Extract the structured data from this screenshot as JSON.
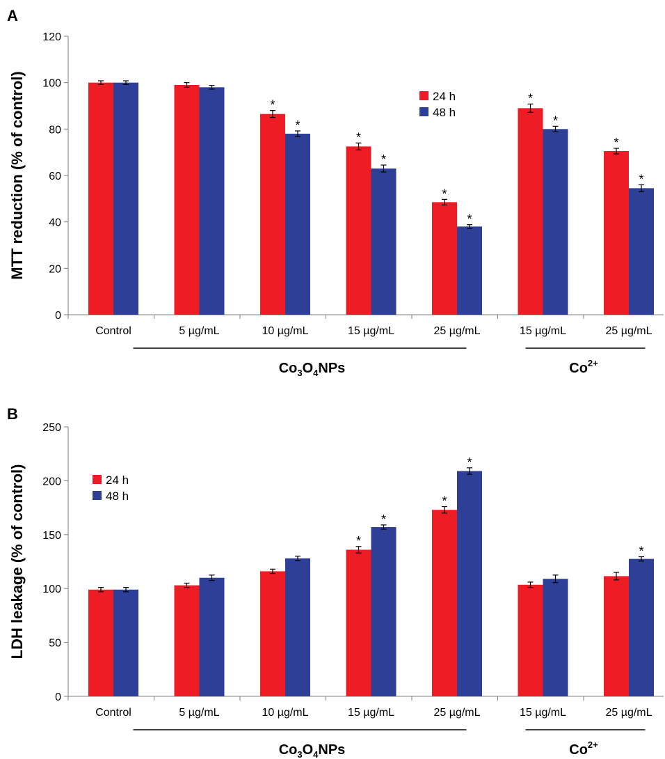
{
  "colors": {
    "s24": "#ee1c25",
    "s48": "#2e3f97"
  },
  "chart_data": [
    {
      "panel": "A",
      "type": "bar",
      "ylabel": "MTT reduction (% of control)",
      "ylim": [
        0,
        120
      ],
      "yticks": [
        0,
        20,
        40,
        60,
        80,
        100,
        120
      ],
      "categories": [
        "Control",
        "5 µg/mL",
        "10 µg/mL",
        "15 µg/mL",
        "25 µg/mL",
        "15 µg/mL",
        "25 µg/mL"
      ],
      "groups": [
        {
          "label_main": "Co",
          "sub1": "3",
          "mid": "O",
          "sub2": "4",
          "tail": "NPs",
          "from": 1,
          "to": 4
        },
        {
          "label_main": "Co",
          "sup": "2+",
          "from": 5,
          "to": 6
        }
      ],
      "legend": {
        "position": "top-center",
        "items": [
          "24 h",
          "48 h"
        ]
      },
      "series": [
        {
          "name": "24 h",
          "values": [
            100,
            99,
            86.5,
            72.5,
            48.5,
            89,
            70.5
          ],
          "errors": [
            0.8,
            1.0,
            1.5,
            1.5,
            1.2,
            1.8,
            1.2
          ],
          "sig": [
            false,
            false,
            true,
            true,
            true,
            true,
            true
          ]
        },
        {
          "name": "48 h",
          "values": [
            100,
            98,
            78,
            63,
            38,
            80,
            54.5
          ],
          "errors": [
            0.8,
            0.8,
            1.2,
            1.5,
            0.8,
            1.2,
            1.5
          ],
          "sig": [
            false,
            false,
            true,
            true,
            true,
            true,
            true
          ]
        }
      ]
    },
    {
      "panel": "B",
      "type": "bar",
      "ylabel": "LDH leakage (% of control)",
      "ylim": [
        0,
        250
      ],
      "yticks": [
        0,
        50,
        100,
        150,
        200,
        250
      ],
      "categories": [
        "Control",
        "5 µg/mL",
        "10 µg/mL",
        "15 µg/mL",
        "25 µg/mL",
        "15 µg/mL",
        "25 µg/mL"
      ],
      "groups": [
        {
          "label_main": "Co",
          "sub1": "3",
          "mid": "O",
          "sub2": "4",
          "tail": "NPs",
          "from": 1,
          "to": 4
        },
        {
          "label_main": "Co",
          "sup": "2+",
          "from": 5,
          "to": 6
        }
      ],
      "legend": {
        "position": "top-left",
        "items": [
          "24 h",
          "48 h"
        ]
      },
      "series": [
        {
          "name": "24 h",
          "values": [
            99,
            103,
            116,
            136,
            173,
            103.5,
            111.5
          ],
          "errors": [
            2.0,
            2.0,
            2.0,
            3.0,
            3.0,
            2.5,
            3.5
          ],
          "sig": [
            false,
            false,
            false,
            true,
            true,
            false,
            false
          ]
        },
        {
          "name": "48 h",
          "values": [
            99,
            110,
            128,
            157,
            209,
            109,
            127.5
          ],
          "errors": [
            2.0,
            2.5,
            2.0,
            2.0,
            3.0,
            3.5,
            2.0
          ],
          "sig": [
            false,
            false,
            false,
            true,
            true,
            false,
            true
          ]
        }
      ]
    }
  ]
}
